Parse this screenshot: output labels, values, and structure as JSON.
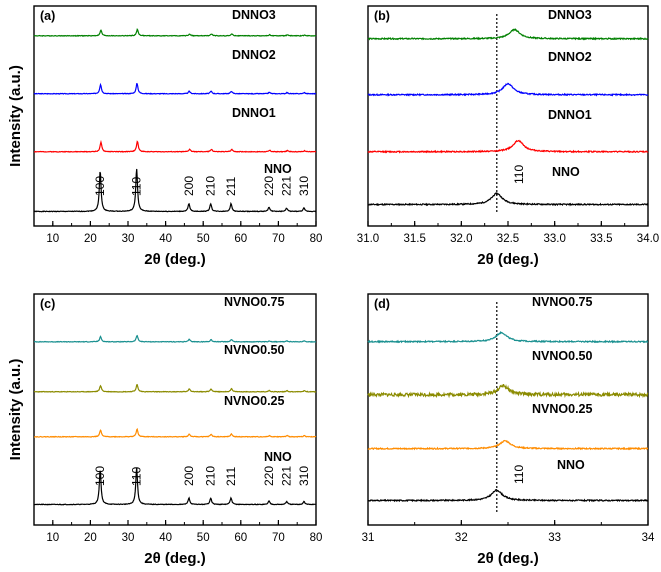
{
  "chart_data": [
    {
      "panel": "(a)",
      "type": "line",
      "xlabel": "2θ (deg.)",
      "ylabel": "Intensity (a.u.)",
      "xlim": [
        5,
        80
      ],
      "xticks": [
        10,
        20,
        30,
        40,
        50,
        60,
        70,
        80
      ],
      "series": [
        {
          "name": "NNO",
          "color": "#000000",
          "offset": 0,
          "baseline": 4,
          "peaks": [
            {
              "x": 22.6,
              "h": 74
            },
            {
              "x": 32.3,
              "h": 78
            },
            {
              "x": 46.2,
              "h": 14
            },
            {
              "x": 52.0,
              "h": 14
            },
            {
              "x": 57.4,
              "h": 14
            },
            {
              "x": 67.5,
              "h": 8
            },
            {
              "x": 72.2,
              "h": 6
            },
            {
              "x": 76.8,
              "h": 6
            }
          ]
        },
        {
          "name": "DNNO1",
          "color": "#ff0000",
          "offset": 1,
          "baseline": 4,
          "peaks": [
            {
              "x": 22.8,
              "h": 34
            },
            {
              "x": 32.5,
              "h": 38
            },
            {
              "x": 46.4,
              "h": 9
            },
            {
              "x": 52.2,
              "h": 9
            },
            {
              "x": 57.6,
              "h": 9
            },
            {
              "x": 67.7,
              "h": 5
            },
            {
              "x": 72.4,
              "h": 4
            },
            {
              "x": 77.0,
              "h": 4
            }
          ]
        },
        {
          "name": "DNNO2",
          "color": "#0000ff",
          "offset": 2,
          "baseline": 4,
          "peaks": [
            {
              "x": 22.7,
              "h": 34
            },
            {
              "x": 32.4,
              "h": 38
            },
            {
              "x": 46.3,
              "h": 9
            },
            {
              "x": 52.1,
              "h": 9
            },
            {
              "x": 57.5,
              "h": 9
            },
            {
              "x": 67.6,
              "h": 5
            },
            {
              "x": 72.3,
              "h": 4
            },
            {
              "x": 76.9,
              "h": 4
            }
          ]
        },
        {
          "name": "DNNO3",
          "color": "#008000",
          "offset": 3,
          "baseline": 4,
          "peaks": [
            {
              "x": 22.8,
              "h": 28
            },
            {
              "x": 32.5,
              "h": 32
            },
            {
              "x": 46.4,
              "h": 9
            },
            {
              "x": 52.2,
              "h": 9
            },
            {
              "x": 57.6,
              "h": 9
            },
            {
              "x": 67.7,
              "h": 5
            },
            {
              "x": 72.4,
              "h": 4
            },
            {
              "x": 77.0,
              "h": 4
            }
          ]
        }
      ],
      "reflections": [
        {
          "label": "100",
          "x": 22.6
        },
        {
          "label": "110",
          "x": 32.3
        },
        {
          "label": "200",
          "x": 46.2
        },
        {
          "label": "210",
          "x": 52.0
        },
        {
          "label": "211",
          "x": 57.4
        },
        {
          "label": "220",
          "x": 67.5
        },
        {
          "label": "221",
          "x": 72.2
        },
        {
          "label": "310",
          "x": 76.8
        }
      ]
    },
    {
      "panel": "(b)",
      "type": "line",
      "xlabel": "2θ (deg.)",
      "xlim": [
        31.0,
        34.0
      ],
      "xticks": [
        31.0,
        31.5,
        32.0,
        32.5,
        33.0,
        33.5,
        34.0
      ],
      "reference_line_x": 32.38,
      "series": [
        {
          "name": "NNO",
          "color": "#000000",
          "offset": 0,
          "baseline": 6,
          "peaks": [
            {
              "x": 32.38,
              "h": 34
            }
          ]
        },
        {
          "name": "DNNO1",
          "color": "#ff0000",
          "offset": 1,
          "baseline": 3,
          "peaks": [
            {
              "x": 32.61,
              "h": 34
            }
          ]
        },
        {
          "name": "DNNO2",
          "color": "#0000ff",
          "offset": 2,
          "baseline": 3,
          "peaks": [
            {
              "x": 32.5,
              "h": 34
            }
          ]
        },
        {
          "name": "DNNO3",
          "color": "#008000",
          "offset": 3,
          "baseline": 3,
          "peaks": [
            {
              "x": 32.57,
              "h": 28
            }
          ]
        }
      ],
      "reflections": [
        {
          "label": "110",
          "x": 32.62
        }
      ]
    },
    {
      "panel": "(c)",
      "type": "line",
      "xlabel": "2θ (deg.)",
      "ylabel": "Intensity (a.u.)",
      "xlim": [
        5,
        80
      ],
      "xticks": [
        10,
        20,
        30,
        40,
        50,
        60,
        70,
        80
      ],
      "series": [
        {
          "name": "NNO",
          "color": "#000000",
          "offset": 0,
          "baseline": 4,
          "peaks": [
            {
              "x": 22.6,
              "h": 70
            },
            {
              "x": 32.3,
              "h": 74
            },
            {
              "x": 46.2,
              "h": 13
            },
            {
              "x": 52.0,
              "h": 13
            },
            {
              "x": 57.4,
              "h": 13
            },
            {
              "x": 67.5,
              "h": 7
            },
            {
              "x": 72.2,
              "h": 6
            },
            {
              "x": 76.8,
              "h": 6
            }
          ]
        },
        {
          "name": "NVNO0.25",
          "color": "#ff8c00",
          "offset": 1,
          "baseline": 4,
          "peaks": [
            {
              "x": 22.7,
              "h": 30
            },
            {
              "x": 32.4,
              "h": 34
            },
            {
              "x": 46.3,
              "h": 12
            },
            {
              "x": 52.1,
              "h": 11
            },
            {
              "x": 57.5,
              "h": 12
            },
            {
              "x": 67.6,
              "h": 5
            },
            {
              "x": 72.3,
              "h": 5
            },
            {
              "x": 76.9,
              "h": 5
            }
          ]
        },
        {
          "name": "NVNO0.50",
          "color": "#8b8b00",
          "offset": 2,
          "baseline": 4,
          "peaks": [
            {
              "x": 22.7,
              "h": 28
            },
            {
              "x": 32.4,
              "h": 32
            },
            {
              "x": 46.3,
              "h": 14
            },
            {
              "x": 52.1,
              "h": 13
            },
            {
              "x": 57.5,
              "h": 14
            },
            {
              "x": 67.6,
              "h": 6
            },
            {
              "x": 72.3,
              "h": 5
            },
            {
              "x": 76.9,
              "h": 5
            }
          ]
        },
        {
          "name": "NVNO0.75",
          "color": "#1a9090",
          "offset": 3,
          "baseline": 4,
          "peaks": [
            {
              "x": 22.7,
              "h": 26
            },
            {
              "x": 32.4,
              "h": 32
            },
            {
              "x": 46.3,
              "h": 12
            },
            {
              "x": 52.1,
              "h": 11
            },
            {
              "x": 57.5,
              "h": 12
            },
            {
              "x": 67.6,
              "h": 5
            },
            {
              "x": 72.3,
              "h": 5
            },
            {
              "x": 76.9,
              "h": 5
            }
          ]
        }
      ],
      "reflections": [
        {
          "label": "100",
          "x": 22.6
        },
        {
          "label": "110",
          "x": 32.3
        },
        {
          "label": "200",
          "x": 46.2
        },
        {
          "label": "210",
          "x": 52.0
        },
        {
          "label": "211",
          "x": 57.4
        },
        {
          "label": "220",
          "x": 67.5
        },
        {
          "label": "221",
          "x": 72.2
        },
        {
          "label": "310",
          "x": 76.8
        }
      ]
    },
    {
      "panel": "(d)",
      "type": "line",
      "xlabel": "2θ (deg.)",
      "xlim": [
        31,
        34
      ],
      "xticks": [
        31,
        32,
        33,
        34
      ],
      "reference_line_x": 32.38,
      "series": [
        {
          "name": "NNO",
          "color": "#000000",
          "offset": 0,
          "baseline": 6,
          "peaks": [
            {
              "x": 32.38,
              "h": 32
            }
          ]
        },
        {
          "name": "NVNO0.25",
          "color": "#ff8c00",
          "offset": 1,
          "baseline": 5,
          "peaks": [
            {
              "x": 32.47,
              "h": 26
            }
          ]
        },
        {
          "name": "NVNO0.50",
          "color": "#8b8b00",
          "offset": 2,
          "baseline": 4,
          "peaks": [
            {
              "x": 32.45,
              "h": 30
            }
          ]
        },
        {
          "name": "NVNO0.75",
          "color": "#1a9090",
          "offset": 3,
          "baseline": 5,
          "peaks": [
            {
              "x": 32.43,
              "h": 30
            }
          ]
        }
      ],
      "reflections": [
        {
          "label": "110",
          "x": 32.62
        }
      ]
    }
  ]
}
